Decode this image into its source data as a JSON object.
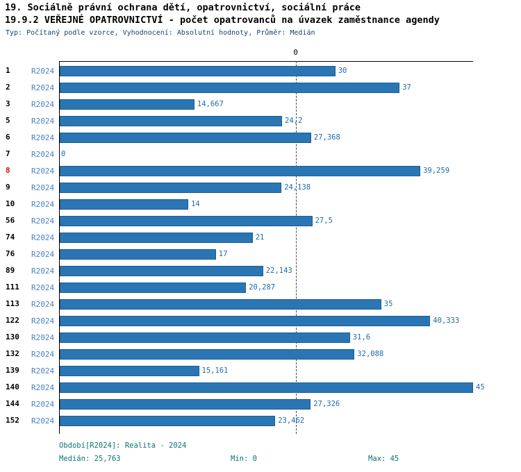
{
  "header": {
    "title1": "19. Sociálně právní ochrana dětí, opatrovnictví, sociální práce",
    "title2": "19.9.2 VEŘEJNÉ OPATROVNICTVÍ - počet opatrovanců na úvazek zaměstnance agendy",
    "subtitle": "Typ: Počítaný podle vzorce, Vyhodnocení: Absolutní hodnoty, Průměr: Medián"
  },
  "chart_data": {
    "type": "bar",
    "orientation": "horizontal",
    "title": "19.9.2 VEŘEJNÉ OPATROVNICTVÍ - počet opatrovanců na úvazek zaměstnance agendy",
    "series_label": "R2024",
    "categories": [
      "1",
      "2",
      "3",
      "5",
      "6",
      "7",
      "8",
      "9",
      "10",
      "56",
      "74",
      "76",
      "89",
      "111",
      "113",
      "122",
      "130",
      "132",
      "139",
      "140",
      "144",
      "152"
    ],
    "values": [
      30,
      37,
      14.667,
      24.2,
      27.368,
      0,
      39.259,
      24.138,
      14,
      27.5,
      21,
      17,
      22.143,
      20.287,
      35,
      40.333,
      31.6,
      32.088,
      15.161,
      45,
      27.326,
      23.462
    ],
    "value_labels": [
      "30",
      "37",
      "14,667",
      "24,2",
      "27,368",
      "0",
      "39,259",
      "24,138",
      "14",
      "27,5",
      "21",
      "17",
      "22,143",
      "20,287",
      "35",
      "40,333",
      "31,6",
      "32,088",
      "15,161",
      "45",
      "27,326",
      "23,462"
    ],
    "highlighted_category": "8",
    "xlim": [
      0,
      45
    ],
    "median": 25.763,
    "axis_zero_label": "0",
    "grid": "off",
    "legend": "none"
  },
  "footer": {
    "period": "Období[R2024]: Realita - 2024",
    "median": "Medián: 25,763",
    "min": "Min: 0",
    "max": "Max: 45"
  },
  "colors": {
    "bar_fill": "#2a76b5",
    "bar_border": "#1c5c90",
    "value_label": "#1d6cab",
    "series_label": "#4a7fc1",
    "highlight_category": "#cc1111",
    "subtitle_text": "#17406e",
    "footer_text": "#0a7474"
  }
}
